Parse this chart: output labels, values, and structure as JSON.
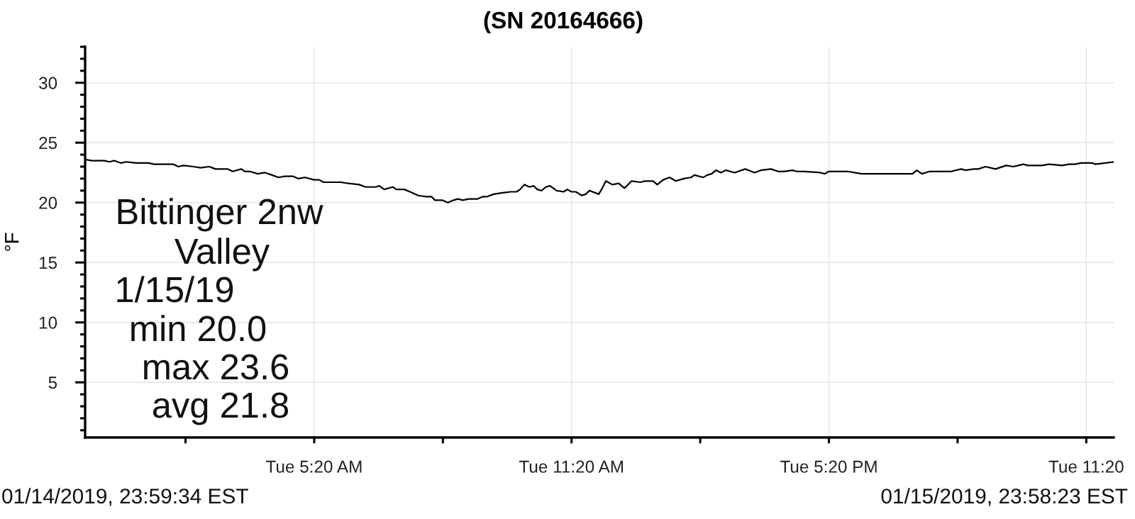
{
  "chart_data": {
    "type": "line",
    "title": "(SN 20164666)",
    "ylabel": "°F",
    "annotations": [
      "Bittinger 2nw",
      "Valley",
      "1/15/19",
      "min 20.0",
      "max 23.6",
      "avg 21.8",
      "01/14/2019, 23:59:34 EST",
      "01/15/2019, 23:58:23 EST"
    ],
    "x": [
      "2019-01-14T23:59:34",
      "2019-01-15T00:09",
      "2019-01-15T00:26",
      "2019-01-15T00:34",
      "2019-01-15T00:40",
      "2019-01-15T00:50",
      "2019-01-15T00:57",
      "2019-01-15T01:11",
      "2019-01-15T01:28",
      "2019-01-15T01:36",
      "2019-01-15T01:49",
      "2019-01-15T02:03",
      "2019-01-15T02:10",
      "2019-01-15T02:17",
      "2019-01-15T02:31",
      "2019-01-15T02:41",
      "2019-01-15T02:53",
      "2019-01-15T03:02",
      "2019-01-15T03:19",
      "2019-01-15T03:26",
      "2019-01-15T03:38",
      "2019-01-15T03:43",
      "2019-01-15T03:50",
      "2019-01-15T04:01",
      "2019-01-15T04:11",
      "2019-01-15T04:21",
      "2019-01-15T04:30",
      "2019-01-15T04:39",
      "2019-01-15T04:50",
      "2019-01-15T04:58",
      "2019-01-15T05:07",
      "2019-01-15T05:20",
      "2019-01-15T05:27",
      "2019-01-15T05:33",
      "2019-01-15T05:57",
      "2019-01-15T06:08",
      "2019-01-15T06:23",
      "2019-01-15T06:32",
      "2019-01-15T06:46",
      "2019-01-15T06:51",
      "2019-01-15T06:58",
      "2019-01-15T07:10",
      "2019-01-15T07:15",
      "2019-01-15T07:26",
      "2019-01-15T07:34",
      "2019-01-15T07:45",
      "2019-01-15T07:56",
      "2019-01-15T08:04",
      "2019-01-15T08:09",
      "2019-01-15T08:19",
      "2019-01-15T08:27",
      "2019-01-15T08:35",
      "2019-01-15T08:41",
      "2019-01-15T08:48",
      "2019-01-15T08:56",
      "2019-01-15T09:08",
      "2019-01-15T09:16",
      "2019-01-15T09:22",
      "2019-01-15T09:31",
      "2019-01-15T09:42",
      "2019-01-15T09:55",
      "2019-01-15T10:03",
      "2019-01-15T10:08",
      "2019-01-15T10:14",
      "2019-01-15T10:21",
      "2019-01-15T10:27",
      "2019-01-15T10:32",
      "2019-01-15T10:38",
      "2019-01-15T10:44",
      "2019-01-15T10:50",
      "2019-01-15T10:59",
      "2019-01-15T11:09",
      "2019-01-15T11:14",
      "2019-01-15T11:20",
      "2019-01-15T11:26",
      "2019-01-15T11:34",
      "2019-01-15T11:40",
      "2019-01-15T11:45",
      "2019-01-15T11:58",
      "2019-01-15T12:02",
      "2019-01-15T12:08",
      "2019-01-15T12:17",
      "2019-01-15T12:26",
      "2019-01-15T12:34",
      "2019-01-15T12:44",
      "2019-01-15T12:56",
      "2019-01-15T13:03",
      "2019-01-15T13:14",
      "2019-01-15T13:20",
      "2019-01-15T13:28",
      "2019-01-15T13:37",
      "2019-01-15T13:46",
      "2019-01-15T13:57",
      "2019-01-15T14:07",
      "2019-01-15T14:12",
      "2019-01-15T14:24",
      "2019-01-15T14:30",
      "2019-01-15T14:36",
      "2019-01-15T14:42",
      "2019-01-15T14:49",
      "2019-01-15T14:56",
      "2019-01-15T15:08",
      "2019-01-15T15:23",
      "2019-01-15T15:36",
      "2019-01-15T15:45",
      "2019-01-15T15:59",
      "2019-01-15T16:09",
      "2019-01-15T16:17",
      "2019-01-15T16:29",
      "2019-01-15T16:35",
      "2019-01-15T16:46",
      "2019-01-15T17:08",
      "2019-01-15T17:14",
      "2019-01-15T17:20",
      "2019-01-15T17:46",
      "2019-01-15T18:06",
      "2019-01-15T18:42",
      "2019-01-15T18:48",
      "2019-01-15T19:17",
      "2019-01-15T19:23",
      "2019-01-15T19:30",
      "2019-01-15T19:41",
      "2019-01-15T20:11",
      "2019-01-15T20:25",
      "2019-01-15T20:31",
      "2019-01-15T20:43",
      "2019-01-15T20:49",
      "2019-01-15T20:59",
      "2019-01-15T21:13",
      "2019-01-15T21:28",
      "2019-01-15T21:38",
      "2019-01-15T21:52",
      "2019-01-15T21:58",
      "2019-01-15T22:18",
      "2019-01-15T22:28",
      "2019-01-15T22:46",
      "2019-01-15T22:56",
      "2019-01-15T23:04",
      "2019-01-15T23:13",
      "2019-01-15T23:29",
      "2019-01-15T23:32",
      "2019-01-15T23:47",
      "2019-01-15T23:58:23"
    ],
    "series": [
      {
        "color": "#000000",
        "values": [
          23.6,
          23.5,
          23.5,
          23.4,
          23.5,
          23.3,
          23.4,
          23.3,
          23.3,
          23.2,
          23.2,
          23.2,
          23.0,
          23.1,
          23.0,
          22.9,
          23.0,
          22.8,
          22.8,
          22.6,
          22.8,
          22.6,
          22.6,
          22.4,
          22.5,
          22.3,
          22.1,
          22.2,
          22.2,
          22.0,
          22.1,
          21.9,
          21.9,
          21.7,
          21.7,
          21.6,
          21.5,
          21.3,
          21.3,
          21.4,
          21.1,
          21.3,
          21.1,
          21.1,
          20.9,
          20.6,
          20.5,
          20.5,
          20.2,
          20.2,
          20.0,
          20.2,
          20.3,
          20.2,
          20.3,
          20.3,
          20.5,
          20.5,
          20.7,
          20.8,
          20.9,
          20.9,
          21.1,
          21.5,
          21.3,
          21.4,
          21.1,
          21.0,
          21.3,
          21.4,
          21.0,
          20.9,
          21.1,
          20.9,
          20.9,
          20.6,
          20.7,
          21.0,
          20.7,
          21.1,
          21.8,
          21.5,
          21.6,
          21.2,
          21.8,
          21.7,
          21.8,
          21.8,
          21.5,
          21.9,
          22.1,
          21.8,
          22.0,
          22.1,
          22.3,
          22.1,
          22.3,
          22.4,
          22.7,
          22.5,
          22.7,
          22.5,
          22.8,
          22.5,
          22.7,
          22.8,
          22.6,
          22.6,
          22.7,
          22.6,
          22.6,
          22.5,
          22.4,
          22.6,
          22.6,
          22.4,
          22.4,
          22.4,
          22.4,
          22.7,
          22.4,
          22.6,
          22.6,
          22.8,
          22.7,
          22.8,
          22.8,
          23.0,
          22.8,
          23.1,
          23.0,
          23.2,
          23.1,
          23.1,
          23.2,
          23.1,
          23.2,
          23.2,
          23.3,
          23.3,
          23.2,
          23.3,
          23.4
        ]
      }
    ],
    "xlim": [
      "2019-01-14T23:59:34",
      "2019-01-15T23:58:23"
    ],
    "xticks": [
      {
        "value": "2019-01-15T02:20",
        "label": null
      },
      {
        "value": "2019-01-15T05:20",
        "label": "Tue 5:20 AM"
      },
      {
        "value": "2019-01-15T08:20",
        "label": null
      },
      {
        "value": "2019-01-15T11:20",
        "label": "Tue 11:20 AM"
      },
      {
        "value": "2019-01-15T14:20",
        "label": null
      },
      {
        "value": "2019-01-15T17:20",
        "label": "Tue 5:20 PM"
      },
      {
        "value": "2019-01-15T20:20",
        "label": null
      },
      {
        "value": "2019-01-15T23:20",
        "label": "Tue 11:20"
      }
    ],
    "ylim": [
      0.4,
      33
    ],
    "yticks": [
      {
        "value": 1,
        "label": null
      },
      {
        "value": 2,
        "label": null
      },
      {
        "value": 3,
        "label": null
      },
      {
        "value": 4,
        "label": null
      },
      5,
      {
        "value": 6,
        "label": null
      },
      {
        "value": 7,
        "label": null
      },
      {
        "value": 8,
        "label": null
      },
      {
        "value": 9,
        "label": null
      },
      10,
      {
        "value": 11,
        "label": null
      },
      {
        "value": 12,
        "label": null
      },
      {
        "value": 13,
        "label": null
      },
      {
        "value": 14,
        "label": null
      },
      15,
      {
        "value": 16,
        "label": null
      },
      {
        "value": 17,
        "label": null
      },
      {
        "value": 18,
        "label": null
      },
      {
        "value": 19,
        "label": null
      },
      20,
      {
        "value": 21,
        "label": null
      },
      {
        "value": 22,
        "label": null
      },
      {
        "value": 23,
        "label": null
      },
      {
        "value": 24,
        "label": null
      },
      25,
      {
        "value": 26,
        "label": null
      },
      {
        "value": 27,
        "label": null
      },
      {
        "value": 28,
        "label": null
      },
      {
        "value": 29,
        "label": null
      },
      30,
      {
        "value": 31,
        "label": null
      },
      {
        "value": 32,
        "label": null
      },
      {
        "value": 33,
        "label": null
      }
    ],
    "grid": true,
    "line_style": "solid"
  }
}
